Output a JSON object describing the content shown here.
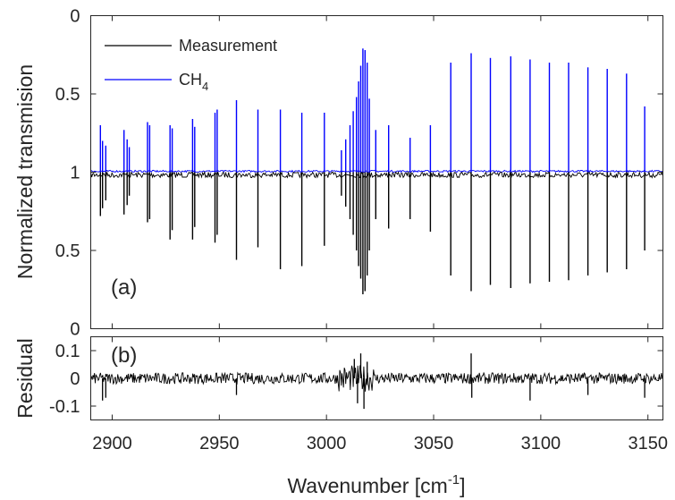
{
  "chart_data": [
    {
      "panel": "a",
      "type": "line",
      "panel_label": "(a)",
      "ylabel": "Normalized transmision",
      "xlim": [
        2890,
        3157
      ],
      "ylim": [
        0,
        1
      ],
      "yticks": [
        "0",
        "0.5",
        "1",
        "0.5",
        "0"
      ],
      "ytick_values": [
        0,
        0.5,
        1,
        1.5,
        2
      ],
      "grid": false,
      "legend_position": "top-left",
      "baseline": 1,
      "series": [
        {
          "name": "Measurement",
          "color": "#000000",
          "direction": "down",
          "lines": [
            {
              "x": 2894.5,
              "y": 0.72
            },
            {
              "x": 2895.5,
              "y": 0.77
            },
            {
              "x": 2897,
              "y": 0.82
            },
            {
              "x": 2905.5,
              "y": 0.73
            },
            {
              "x": 2907,
              "y": 0.79
            },
            {
              "x": 2908,
              "y": 0.85
            },
            {
              "x": 2916.5,
              "y": 0.68
            },
            {
              "x": 2917.5,
              "y": 0.7
            },
            {
              "x": 2927,
              "y": 0.57
            },
            {
              "x": 2928,
              "y": 0.63
            },
            {
              "x": 2937.5,
              "y": 0.57
            },
            {
              "x": 2938.5,
              "y": 0.65
            },
            {
              "x": 2948,
              "y": 0.55
            },
            {
              "x": 2949,
              "y": 0.6
            },
            {
              "x": 2958,
              "y": 0.44
            },
            {
              "x": 2968,
              "y": 0.52
            },
            {
              "x": 2978.5,
              "y": 0.38
            },
            {
              "x": 2988.5,
              "y": 0.4
            },
            {
              "x": 2999,
              "y": 0.53
            },
            {
              "x": 3007,
              "y": 0.85
            },
            {
              "x": 3009,
              "y": 0.78
            },
            {
              "x": 3011,
              "y": 0.7
            },
            {
              "x": 3012.5,
              "y": 0.6
            },
            {
              "x": 3014,
              "y": 0.5
            },
            {
              "x": 3015,
              "y": 0.4
            },
            {
              "x": 3016,
              "y": 0.32
            },
            {
              "x": 3017,
              "y": 0.22
            },
            {
              "x": 3018,
              "y": 0.24
            },
            {
              "x": 3019,
              "y": 0.34
            },
            {
              "x": 3020,
              "y": 0.5
            },
            {
              "x": 3023,
              "y": 0.7
            },
            {
              "x": 3029,
              "y": 0.64
            },
            {
              "x": 3039,
              "y": 0.7
            },
            {
              "x": 3048.5,
              "y": 0.62
            },
            {
              "x": 3058,
              "y": 0.34
            },
            {
              "x": 3067.5,
              "y": 0.24
            },
            {
              "x": 3076.5,
              "y": 0.28
            },
            {
              "x": 3086,
              "y": 0.26
            },
            {
              "x": 3095,
              "y": 0.29
            },
            {
              "x": 3104,
              "y": 0.3
            },
            {
              "x": 3113,
              "y": 0.31
            },
            {
              "x": 3122,
              "y": 0.34
            },
            {
              "x": 3131,
              "y": 0.36
            },
            {
              "x": 3140,
              "y": 0.38
            },
            {
              "x": 3148.5,
              "y": 0.5
            }
          ]
        },
        {
          "name": "CH4",
          "legend_label": "CH",
          "legend_subscript": "4",
          "color": "#0000ff",
          "direction": "up",
          "lines": [
            {
              "x": 2894.5,
              "y": 0.7
            },
            {
              "x": 2895.5,
              "y": 0.8
            },
            {
              "x": 2897,
              "y": 0.83
            },
            {
              "x": 2905.5,
              "y": 0.73
            },
            {
              "x": 2907,
              "y": 0.79
            },
            {
              "x": 2908,
              "y": 0.84
            },
            {
              "x": 2916.5,
              "y": 0.68
            },
            {
              "x": 2917.5,
              "y": 0.7
            },
            {
              "x": 2927,
              "y": 0.7
            },
            {
              "x": 2928,
              "y": 0.72
            },
            {
              "x": 2937.5,
              "y": 0.66
            },
            {
              "x": 2938.5,
              "y": 0.71
            },
            {
              "x": 2948,
              "y": 0.62
            },
            {
              "x": 2949,
              "y": 0.6
            },
            {
              "x": 2958,
              "y": 0.54
            },
            {
              "x": 2968,
              "y": 0.6
            },
            {
              "x": 2978.5,
              "y": 0.6
            },
            {
              "x": 2988.5,
              "y": 0.62
            },
            {
              "x": 2999,
              "y": 0.62
            },
            {
              "x": 3007,
              "y": 0.86
            },
            {
              "x": 3009,
              "y": 0.79
            },
            {
              "x": 3011,
              "y": 0.7
            },
            {
              "x": 3012.5,
              "y": 0.61
            },
            {
              "x": 3014,
              "y": 0.52
            },
            {
              "x": 3015,
              "y": 0.42
            },
            {
              "x": 3016,
              "y": 0.32
            },
            {
              "x": 3017,
              "y": 0.21
            },
            {
              "x": 3018,
              "y": 0.22
            },
            {
              "x": 3019,
              "y": 0.3
            },
            {
              "x": 3020,
              "y": 0.53
            },
            {
              "x": 3023,
              "y": 0.73
            },
            {
              "x": 3029,
              "y": 0.7
            },
            {
              "x": 3039,
              "y": 0.78
            },
            {
              "x": 3048.5,
              "y": 0.7
            },
            {
              "x": 3058,
              "y": 0.3
            },
            {
              "x": 3067.5,
              "y": 0.24
            },
            {
              "x": 3076.5,
              "y": 0.27
            },
            {
              "x": 3086,
              "y": 0.26
            },
            {
              "x": 3095,
              "y": 0.28
            },
            {
              "x": 3104,
              "y": 0.3
            },
            {
              "x": 3113,
              "y": 0.3
            },
            {
              "x": 3122,
              "y": 0.33
            },
            {
              "x": 3131,
              "y": 0.34
            },
            {
              "x": 3140,
              "y": 0.37
            },
            {
              "x": 3148.5,
              "y": 0.58
            }
          ]
        }
      ]
    },
    {
      "panel": "b",
      "type": "line",
      "panel_label": "(b)",
      "ylabel": "Residual",
      "xlabel": "Wavenumber [cm",
      "xlabel_superscript": "-1",
      "xlabel_suffix": "]",
      "xlim": [
        2890,
        3157
      ],
      "ylim": [
        -0.15,
        0.15
      ],
      "yticks": [
        "-0.1",
        "0",
        "0.1"
      ],
      "ytick_values": [
        -0.1,
        0,
        0.1
      ],
      "xticks": [
        "2900",
        "2950",
        "3000",
        "3050",
        "3100",
        "3150"
      ],
      "xtick_values": [
        2900,
        2950,
        3000,
        3050,
        3100,
        3150
      ],
      "grid": false,
      "noise_level": 0.02,
      "series": [
        {
          "name": "Residual",
          "color": "#000000",
          "spikes": [
            {
              "x": 2895.5,
              "y": -0.08
            },
            {
              "x": 2897,
              "y": -0.07
            },
            {
              "x": 2958,
              "y": -0.06
            },
            {
              "x": 3013,
              "y": 0.07
            },
            {
              "x": 3014.5,
              "y": -0.09
            },
            {
              "x": 3016,
              "y": 0.09
            },
            {
              "x": 3017.5,
              "y": -0.11
            },
            {
              "x": 3019,
              "y": 0.06
            },
            {
              "x": 3067.5,
              "y": 0.09
            },
            {
              "x": 3067.8,
              "y": -0.07
            },
            {
              "x": 3095,
              "y": -0.08
            },
            {
              "x": 3122,
              "y": -0.06
            },
            {
              "x": 3148.5,
              "y": -0.07
            }
          ]
        }
      ]
    }
  ]
}
